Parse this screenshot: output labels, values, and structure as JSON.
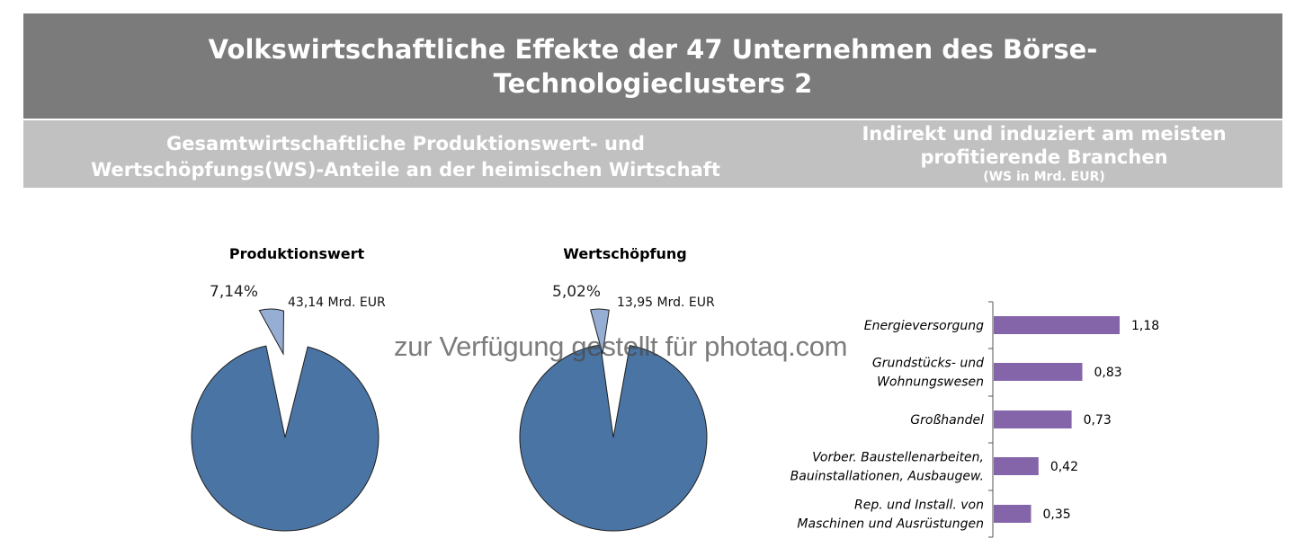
{
  "header": {
    "title_line1": "Volkswirtschaftliche Effekte der 47 Unternehmen des Börse-",
    "title_line2": "Technologieclusters 2"
  },
  "subheader": {
    "left_line1": "Gesamtwirtschaftliche Produktionswert- und",
    "left_line2": "Wertschöpfungs(WS)-Anteile an der heimischen Wirtschaft",
    "right_line1": "Indirekt und induziert am meisten",
    "right_line2": "profitierende Branchen",
    "right_line3": "(WS in Mrd. EUR)"
  },
  "colors": {
    "banner": "#7b7b7b",
    "subbar": "#c1c1c1",
    "pie_main": "#4a74a3",
    "pie_slice": "#97aed4",
    "bar": "#8565aa"
  },
  "watermark": "zur Verfügung gestellt für photaq.com",
  "chart_data": [
    {
      "type": "pie",
      "title": "Produktionswert",
      "slices": [
        {
          "label": "7,14%",
          "value": 7.14,
          "exploded": true
        },
        {
          "label": "",
          "value": 92.86,
          "exploded": false
        }
      ],
      "annotation": "43,14 Mrd. EUR"
    },
    {
      "type": "pie",
      "title": "Wertschöpfung",
      "slices": [
        {
          "label": "5,02%",
          "value": 5.02,
          "exploded": true
        },
        {
          "label": "",
          "value": 94.98,
          "exploded": false
        }
      ],
      "annotation": "13,95 Mrd. EUR"
    },
    {
      "type": "bar",
      "orientation": "horizontal",
      "categories": [
        [
          "Energieversorgung"
        ],
        [
          "Grundstücks- und",
          "Wohnungswesen"
        ],
        [
          "Großhandel"
        ],
        [
          "Vorber. Baustellenarbeiten,",
          "Bauinstallationen, Ausbaugew."
        ],
        [
          "Rep. und Install. von",
          "Maschinen und Ausrüstungen"
        ]
      ],
      "values": [
        1.18,
        0.83,
        0.73,
        0.42,
        0.35
      ],
      "value_labels": [
        "1,18",
        "0,83",
        "0,73",
        "0,42",
        "0,35"
      ]
    }
  ]
}
